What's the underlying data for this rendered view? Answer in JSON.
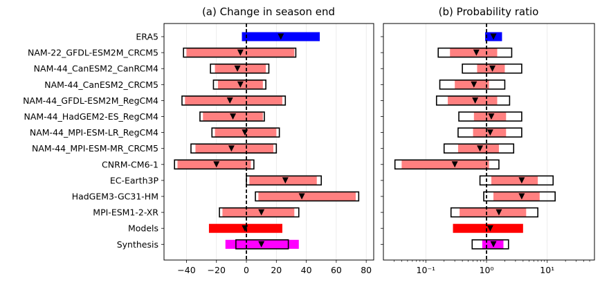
{
  "chart_data": [
    {
      "type": "bar",
      "title": "(a) Change in season end",
      "xlabel": "",
      "ylabel": "",
      "xlim": [
        -55,
        85
      ],
      "xticks": [
        -40,
        -20,
        0,
        20,
        40,
        60,
        80
      ],
      "xtick_labels": [
        "−40",
        "−20",
        "0",
        "20",
        "40",
        "60",
        "80"
      ],
      "grid": "vertical",
      "reference_line": 0,
      "rows": [
        {
          "label": "ERA5",
          "best": 23,
          "fill": [
            -3,
            49
          ],
          "fill_color": "#0000ff",
          "box": null
        },
        {
          "label": "NAM-22_GFDL-ESM2M_CRCM5",
          "best": -4,
          "fill": [
            -40,
            32
          ],
          "fill_color": "#ff8080",
          "box": [
            -42,
            33
          ]
        },
        {
          "label": "NAM-44_CanESM2_CanRCM4",
          "best": -6,
          "fill": [
            -21,
            13
          ],
          "fill_color": "#ff8080",
          "box": [
            -24,
            15
          ]
        },
        {
          "label": "NAM-44_CanESM2_CRCM5",
          "best": -4,
          "fill": [
            -19,
            11
          ],
          "fill_color": "#ff8080",
          "box": [
            -22,
            13
          ]
        },
        {
          "label": "NAM-44_GFDL-ESM2M_RegCM4",
          "best": -11,
          "fill": [
            -41,
            24
          ],
          "fill_color": "#ff8080",
          "box": [
            -43,
            26
          ]
        },
        {
          "label": "NAM-44_HadGEM2-ES_RegCM4",
          "best": -9,
          "fill": [
            -29,
            11
          ],
          "fill_color": "#ff8080",
          "box": [
            -31,
            12
          ]
        },
        {
          "label": "NAM-44_MPI-ESM-LR_RegCM4",
          "best": -1,
          "fill": [
            -21,
            20
          ],
          "fill_color": "#ff8080",
          "box": [
            -23,
            22
          ]
        },
        {
          "label": "NAM-44_MPI-ESM-MR_CRCM5",
          "best": -10,
          "fill": [
            -34,
            18
          ],
          "fill_color": "#ff8080",
          "box": [
            -37,
            20
          ]
        },
        {
          "label": "CNRM-CM6-1",
          "best": -20,
          "fill": [
            -46,
            3
          ],
          "fill_color": "#ff8080",
          "box": [
            -48,
            5
          ]
        },
        {
          "label": "EC-Earth3P",
          "best": 26,
          "fill": [
            2,
            47
          ],
          "fill_color": "#ff8080",
          "box": [
            0,
            50
          ]
        },
        {
          "label": "HadGEM3-GC31-HM",
          "best": 37,
          "fill": [
            8,
            73
          ],
          "fill_color": "#ff8080",
          "box": [
            6,
            75
          ]
        },
        {
          "label": "MPI-ESM1-2-XR",
          "best": 10,
          "fill": [
            -16,
            32
          ],
          "fill_color": "#ff8080",
          "box": [
            -18,
            35
          ]
        },
        {
          "label": "Models",
          "best": -1,
          "fill": [
            -25,
            24
          ],
          "fill_color": "#ff0000",
          "box": null
        },
        {
          "label": "Synthesis",
          "best": 10,
          "fill": [
            -14,
            35
          ],
          "fill_color": "#ff00ff",
          "box": [
            -7,
            28
          ]
        }
      ]
    },
    {
      "type": "bar",
      "title": "(b) Probability ratio",
      "xlabel": "",
      "ylabel": "",
      "xscale": "log",
      "xlim": [
        0.02,
        60
      ],
      "xticks": [
        0.1,
        1,
        10
      ],
      "xtick_labels": [
        "10⁻¹",
        "10⁰",
        "10¹"
      ],
      "grid": "vertical",
      "reference_line": 1,
      "rows": [
        {
          "label": "ERA5",
          "best": 1.3,
          "fill": [
            0.95,
            1.8
          ],
          "fill_color": "#0000ff",
          "box": null
        },
        {
          "label": "NAM-22_GFDL-ESM2M_CRCM5",
          "best": 0.68,
          "fill": [
            0.25,
            1.5
          ],
          "fill_color": "#ff8080",
          "box": [
            0.16,
            2.6
          ]
        },
        {
          "label": "NAM-44_CanESM2_CanRCM4",
          "best": 1.25,
          "fill": [
            0.7,
            2.0
          ],
          "fill_color": "#ff8080",
          "box": [
            0.4,
            3.8
          ]
        },
        {
          "label": "NAM-44_CanESM2_CRCM5",
          "best": 0.62,
          "fill": [
            0.3,
            1.1
          ],
          "fill_color": "#ff8080",
          "box": [
            0.17,
            2.0
          ]
        },
        {
          "label": "NAM-44_GFDL-ESM2M_RegCM4",
          "best": 0.65,
          "fill": [
            0.23,
            1.5
          ],
          "fill_color": "#ff8080",
          "box": [
            0.15,
            2.4
          ]
        },
        {
          "label": "NAM-44_HadGEM2-ES_RegCM4",
          "best": 1.2,
          "fill": [
            0.62,
            2.1
          ],
          "fill_color": "#ff8080",
          "box": [
            0.35,
            3.8
          ]
        },
        {
          "label": "NAM-44_MPI-ESM-LR_RegCM4",
          "best": 1.15,
          "fill": [
            0.6,
            2.1
          ],
          "fill_color": "#ff8080",
          "box": [
            0.34,
            3.8
          ]
        },
        {
          "label": "NAM-44_MPI-ESM-MR_CRCM5",
          "best": 0.78,
          "fill": [
            0.34,
            1.6
          ],
          "fill_color": "#ff8080",
          "box": [
            0.2,
            2.8
          ]
        },
        {
          "label": "CNRM-CM6-1",
          "best": 0.3,
          "fill": [
            0.04,
            1.1
          ],
          "fill_color": "#ff8080",
          "box": [
            0.031,
            1.6
          ]
        },
        {
          "label": "EC-Earth3P",
          "best": 3.8,
          "fill": [
            1.2,
            7.0
          ],
          "fill_color": "#ff8080",
          "box": [
            0.78,
            12.5
          ]
        },
        {
          "label": "HadGEM3-GC31-HM",
          "best": 3.8,
          "fill": [
            1.3,
            7.5
          ],
          "fill_color": "#ff8080",
          "box": [
            0.9,
            13.5
          ]
        },
        {
          "label": "MPI-ESM1-2-XR",
          "best": 1.6,
          "fill": [
            0.36,
            4.5
          ],
          "fill_color": "#ff8080",
          "box": [
            0.26,
            7.0
          ]
        },
        {
          "label": "Models",
          "best": 1.15,
          "fill": [
            0.28,
            4.0
          ],
          "fill_color": "#ff0000",
          "box": null
        },
        {
          "label": "Synthesis",
          "best": 1.3,
          "fill": [
            0.85,
            1.9
          ],
          "fill_color": "#ff00ff",
          "box": [
            0.58,
            2.3
          ]
        }
      ]
    }
  ]
}
